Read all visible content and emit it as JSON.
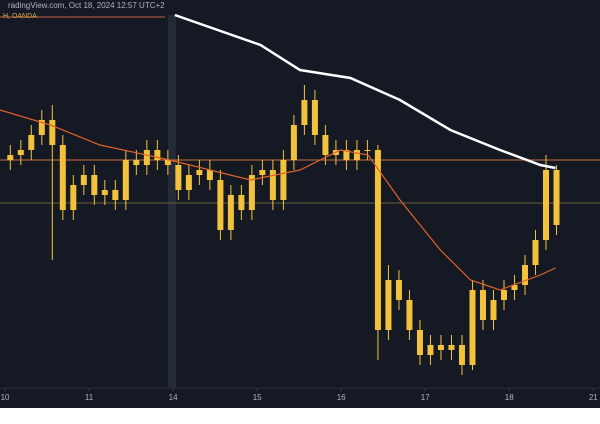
{
  "chart_data": {
    "type": "candlestick",
    "title": "radingView.com, Oct 18, 2024 12:57 UTC+2",
    "subtitle": "H, OANDA",
    "color": "#f2c23c",
    "x": [
      0.0625,
      0.1875,
      0.3125,
      0.4375,
      0.5625,
      0.6875,
      0.8125,
      0.9375,
      1.0625,
      1.1875,
      1.3125,
      1.4375,
      1.5625,
      1.6875,
      1.8125,
      1.9375,
      2.0625,
      2.1875,
      2.3125,
      2.4375,
      2.5625,
      2.6875,
      2.8125,
      2.9375,
      3.0625,
      3.1875,
      3.3125,
      3.4375,
      3.5625,
      3.6875,
      3.8125,
      3.9375,
      4.0625,
      4.1875,
      4.3125,
      4.4375,
      4.5625,
      4.6875,
      4.8125,
      4.9375,
      5.0625,
      5.1875,
      5.3125,
      5.4375,
      5.5625,
      5.6875,
      5.8125,
      5.9375,
      6.0625,
      6.1875,
      6.3125,
      6.4375,
      6.5625
    ],
    "open": [
      240,
      245,
      250,
      265,
      280,
      255,
      190,
      215,
      225,
      205,
      210,
      200,
      240,
      235,
      250,
      240,
      235,
      210,
      225,
      230,
      220,
      170,
      205,
      190,
      225,
      230,
      200,
      240,
      275,
      300,
      265,
      245,
      250,
      240,
      250,
      250,
      70,
      120,
      100,
      70,
      45,
      55,
      50,
      55,
      35,
      110,
      80,
      100,
      110,
      115,
      135,
      160,
      230
    ],
    "high": [
      255,
      260,
      275,
      290,
      295,
      265,
      225,
      235,
      235,
      220,
      220,
      250,
      250,
      260,
      260,
      250,
      245,
      235,
      240,
      240,
      230,
      215,
      215,
      235,
      240,
      240,
      250,
      285,
      315,
      310,
      275,
      260,
      260,
      260,
      260,
      255,
      135,
      130,
      110,
      80,
      65,
      65,
      65,
      65,
      120,
      120,
      110,
      120,
      125,
      145,
      170,
      245,
      235
    ],
    "low": [
      230,
      235,
      240,
      255,
      140,
      180,
      180,
      205,
      195,
      195,
      190,
      190,
      225,
      225,
      230,
      225,
      200,
      200,
      215,
      210,
      160,
      160,
      180,
      180,
      215,
      190,
      190,
      230,
      265,
      255,
      235,
      235,
      230,
      230,
      240,
      40,
      60,
      90,
      60,
      35,
      35,
      40,
      40,
      25,
      30,
      70,
      70,
      90,
      100,
      105,
      125,
      150,
      165
    ],
    "close": [
      245,
      250,
      265,
      280,
      255,
      190,
      215,
      225,
      205,
      210,
      200,
      240,
      235,
      250,
      240,
      235,
      210,
      225,
      230,
      220,
      170,
      205,
      190,
      225,
      230,
      200,
      240,
      275,
      300,
      265,
      245,
      250,
      240,
      250,
      250,
      70,
      120,
      100,
      70,
      45,
      55,
      50,
      55,
      35,
      110,
      80,
      100,
      110,
      115,
      135,
      160,
      230,
      175
    ],
    "lines": [
      {
        "color": "#ffffff",
        "x": [
          2.02,
          3.04,
          3.51,
          4.11,
          4.7,
          5.3,
          5.89,
          6.37,
          6.55
        ],
        "values": [
          385,
          355,
          330,
          322,
          300,
          270,
          250,
          235,
          232
        ]
      },
      {
        "color": "#e0622a",
        "x": [
          -0.06,
          0.54,
          1.13,
          1.96,
          2.92,
          3.51,
          3.99,
          4.32,
          4.7,
          5.18,
          5.54,
          5.89,
          6.37,
          6.55
        ],
        "values": [
          290,
          275,
          255,
          240,
          220,
          230,
          250,
          245,
          200,
          150,
          120,
          110,
          125,
          132
        ]
      }
    ],
    "hlines": [
      {
        "value": 240,
        "color": "#c8703a"
      },
      {
        "value": 197,
        "color": "#6b5a3a"
      }
    ],
    "xlim": [
      -0.06,
      7.08
    ],
    "ylim": [
      12,
      385
    ],
    "xticks": [
      {
        "value": 0,
        "label": "10"
      },
      {
        "value": 1,
        "label": "11"
      },
      {
        "value": 2,
        "label": "14"
      },
      {
        "value": 3,
        "label": "15"
      },
      {
        "value": 4,
        "label": "16"
      },
      {
        "value": 5,
        "label": "17"
      },
      {
        "value": 6,
        "label": "18"
      },
      {
        "value": 7,
        "label": "21"
      }
    ]
  }
}
